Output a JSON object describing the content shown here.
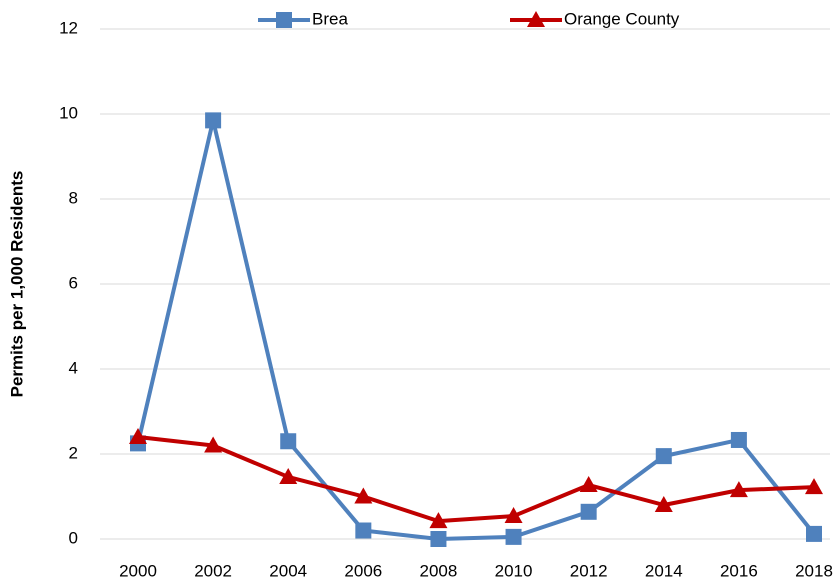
{
  "chart_data": {
    "type": "line",
    "y_label": "Permits per 1,000 Residents",
    "categories": [
      "2000",
      "2002",
      "2004",
      "2006",
      "2008",
      "2010",
      "2012",
      "2014",
      "2016",
      "2018"
    ],
    "series": [
      {
        "name": "Brea",
        "color": "#4f81bd",
        "marker": "square",
        "values": [
          2.25,
          9.85,
          2.3,
          0.2,
          0.0,
          0.05,
          0.64,
          1.95,
          2.33,
          0.12
        ]
      },
      {
        "name": "Orange County",
        "color": "#c00000",
        "marker": "triangle",
        "values": [
          2.4,
          2.2,
          1.46,
          1.0,
          0.42,
          0.54,
          1.27,
          0.8,
          1.15,
          1.22
        ]
      }
    ],
    "ylim": [
      0,
      12
    ],
    "yticks": [
      0,
      2,
      4,
      6,
      8,
      10,
      12
    ],
    "grid": true,
    "legend": "top"
  }
}
